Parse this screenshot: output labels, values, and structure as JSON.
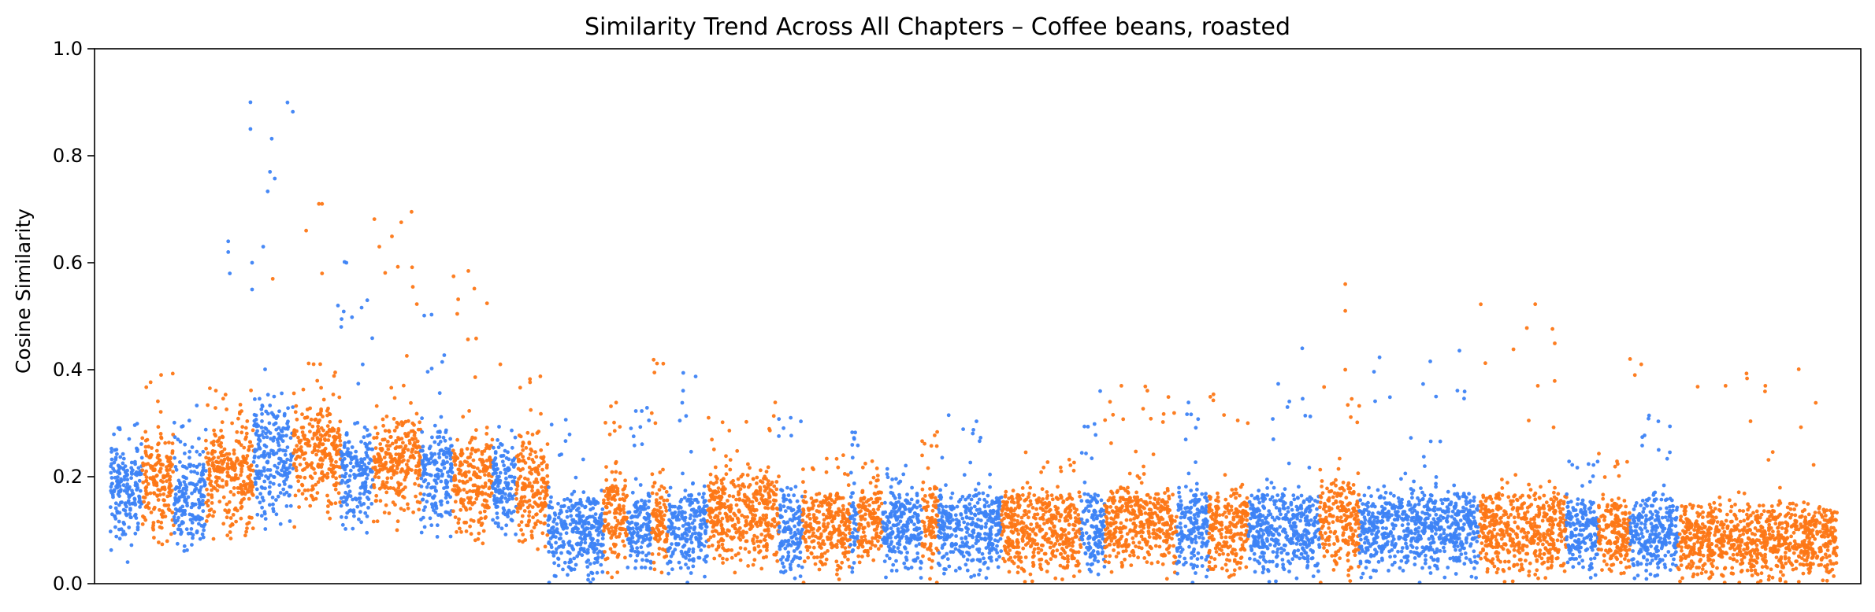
{
  "chart_data": {
    "type": "scatter",
    "title": "Similarity Trend Across All Chapters – Coffee beans, roasted",
    "xlabel": "",
    "ylabel": "Cosine Similarity",
    "ylim": [
      0.0,
      1.0
    ],
    "yticks": [
      "0.0",
      "0.2",
      "0.4",
      "0.6",
      "0.8",
      "1.0"
    ],
    "xticks_visible": false,
    "grid": false,
    "legend": "none",
    "colors": {
      "blue": "#3d83f5",
      "orange": "#fd7716"
    },
    "series_note": "Alternating chapter bands colored blue / orange; thousands of points per band",
    "bands": [
      {
        "x": [
          0.0,
          0.02
        ],
        "color": "blue",
        "median": 0.17,
        "spread": 0.08,
        "max": 0.3
      },
      {
        "x": [
          0.02,
          0.04
        ],
        "color": "orange",
        "median": 0.18,
        "spread": 0.09,
        "max": 0.4
      },
      {
        "x": [
          0.04,
          0.06
        ],
        "color": "blue",
        "median": 0.16,
        "spread": 0.09,
        "max": 0.36
      },
      {
        "x": [
          0.06,
          0.09
        ],
        "color": "orange",
        "median": 0.2,
        "spread": 0.1,
        "max": 0.37
      },
      {
        "x": [
          0.09,
          0.115
        ],
        "color": "blue",
        "median": 0.24,
        "spread": 0.1,
        "max": 0.9
      },
      {
        "x": [
          0.115,
          0.145
        ],
        "color": "orange",
        "median": 0.24,
        "spread": 0.09,
        "max": 0.42
      },
      {
        "x": [
          0.145,
          0.165
        ],
        "color": "blue",
        "median": 0.2,
        "spread": 0.09,
        "max": 0.63
      },
      {
        "x": [
          0.165,
          0.195
        ],
        "color": "orange",
        "median": 0.23,
        "spread": 0.09,
        "max": 0.71
      },
      {
        "x": [
          0.195,
          0.215
        ],
        "color": "blue",
        "median": 0.2,
        "spread": 0.09,
        "max": 0.52
      },
      {
        "x": [
          0.215,
          0.24
        ],
        "color": "orange",
        "median": 0.19,
        "spread": 0.09,
        "max": 0.63
      },
      {
        "x": [
          0.24,
          0.255
        ],
        "color": "blue",
        "median": 0.18,
        "spread": 0.08,
        "max": 0.3
      },
      {
        "x": [
          0.255,
          0.275
        ],
        "color": "orange",
        "median": 0.18,
        "spread": 0.09,
        "max": 0.4
      },
      {
        "x": [
          0.275,
          0.31
        ],
        "color": "blue",
        "median": 0.09,
        "spread": 0.07,
        "max": 0.31
      },
      {
        "x": [
          0.31,
          0.325
        ],
        "color": "orange",
        "median": 0.12,
        "spread": 0.08,
        "max": 0.38
      },
      {
        "x": [
          0.325,
          0.34
        ],
        "color": "blue",
        "median": 0.1,
        "spread": 0.07,
        "max": 0.34
      },
      {
        "x": [
          0.34,
          0.35
        ],
        "color": "orange",
        "median": 0.12,
        "spread": 0.08,
        "max": 0.42
      },
      {
        "x": [
          0.35,
          0.375
        ],
        "color": "blue",
        "median": 0.1,
        "spread": 0.07,
        "max": 0.4
      },
      {
        "x": [
          0.375,
          0.42
        ],
        "color": "orange",
        "median": 0.13,
        "spread": 0.08,
        "max": 0.34
      },
      {
        "x": [
          0.42,
          0.435
        ],
        "color": "blue",
        "median": 0.1,
        "spread": 0.07,
        "max": 0.32
      },
      {
        "x": [
          0.435,
          0.465
        ],
        "color": "orange",
        "median": 0.1,
        "spread": 0.07,
        "max": 0.27
      },
      {
        "x": [
          0.465,
          0.47
        ],
        "color": "blue",
        "median": 0.1,
        "spread": 0.07,
        "max": 0.29
      },
      {
        "x": [
          0.47,
          0.485
        ],
        "color": "orange",
        "median": 0.11,
        "spread": 0.07,
        "max": 0.23
      },
      {
        "x": [
          0.485,
          0.51
        ],
        "color": "blue",
        "median": 0.1,
        "spread": 0.07,
        "max": 0.23
      },
      {
        "x": [
          0.51,
          0.52
        ],
        "color": "orange",
        "median": 0.11,
        "spread": 0.07,
        "max": 0.3
      },
      {
        "x": [
          0.52,
          0.56
        ],
        "color": "blue",
        "median": 0.1,
        "spread": 0.07,
        "max": 0.32
      },
      {
        "x": [
          0.56,
          0.61
        ],
        "color": "orange",
        "median": 0.1,
        "spread": 0.07,
        "max": 0.26
      },
      {
        "x": [
          0.61,
          0.625
        ],
        "color": "blue",
        "median": 0.1,
        "spread": 0.07,
        "max": 0.31
      },
      {
        "x": [
          0.625,
          0.67
        ],
        "color": "orange",
        "median": 0.11,
        "spread": 0.07,
        "max": 0.38
      },
      {
        "x": [
          0.67,
          0.69
        ],
        "color": "blue",
        "median": 0.1,
        "spread": 0.07,
        "max": 0.36
      },
      {
        "x": [
          0.69,
          0.715
        ],
        "color": "orange",
        "median": 0.1,
        "spread": 0.07,
        "max": 0.38
      },
      {
        "x": [
          0.715,
          0.76
        ],
        "color": "blue",
        "median": 0.1,
        "spread": 0.07,
        "max": 0.38
      },
      {
        "x": [
          0.76,
          0.785
        ],
        "color": "orange",
        "median": 0.11,
        "spread": 0.08,
        "max": 0.39
      },
      {
        "x": [
          0.785,
          0.86
        ],
        "color": "blue",
        "median": 0.1,
        "spread": 0.07,
        "max": 0.44
      },
      {
        "x": [
          0.86,
          0.915
        ],
        "color": "orange",
        "median": 0.1,
        "spread": 0.07,
        "max": 0.56
      },
      {
        "x": [
          0.915,
          0.935
        ],
        "color": "blue",
        "median": 0.09,
        "spread": 0.06,
        "max": 0.25
      },
      {
        "x": [
          0.935,
          0.955
        ],
        "color": "orange",
        "median": 0.09,
        "spread": 0.06,
        "max": 0.25
      },
      {
        "x": [
          0.955,
          0.985
        ],
        "color": "blue",
        "median": 0.09,
        "spread": 0.06,
        "max": 0.32
      },
      {
        "x": [
          0.985,
          1.085
        ],
        "color": "orange",
        "median": 0.08,
        "spread": 0.06,
        "max": 0.42
      }
    ],
    "outliers": [
      {
        "x": 0.088,
        "y": 0.9,
        "color": "blue"
      },
      {
        "x": 0.088,
        "y": 0.85,
        "color": "blue"
      },
      {
        "x": 0.074,
        "y": 0.64,
        "color": "blue"
      },
      {
        "x": 0.074,
        "y": 0.62,
        "color": "blue"
      },
      {
        "x": 0.075,
        "y": 0.58,
        "color": "blue"
      },
      {
        "x": 0.089,
        "y": 0.6,
        "color": "blue"
      },
      {
        "x": 0.096,
        "y": 0.63,
        "color": "blue"
      },
      {
        "x": 0.089,
        "y": 0.55,
        "color": "blue"
      },
      {
        "x": 0.102,
        "y": 0.57,
        "color": "orange"
      },
      {
        "x": 0.123,
        "y": 0.66,
        "color": "orange"
      },
      {
        "x": 0.131,
        "y": 0.71,
        "color": "orange"
      },
      {
        "x": 0.133,
        "y": 0.71,
        "color": "orange"
      },
      {
        "x": 0.133,
        "y": 0.58,
        "color": "orange"
      },
      {
        "x": 0.143,
        "y": 0.52,
        "color": "blue"
      },
      {
        "x": 0.145,
        "y": 0.48,
        "color": "blue"
      },
      {
        "x": 0.169,
        "y": 0.63,
        "color": "orange"
      },
      {
        "x": 0.245,
        "y": 0.41,
        "color": "orange"
      },
      {
        "x": 0.622,
        "y": 0.36,
        "color": "blue"
      },
      {
        "x": 0.749,
        "y": 0.44,
        "color": "blue"
      },
      {
        "x": 0.776,
        "y": 0.56,
        "color": "orange"
      },
      {
        "x": 0.776,
        "y": 0.51,
        "color": "orange"
      },
      {
        "x": 0.776,
        "y": 0.4,
        "color": "orange"
      },
      {
        "x": 0.897,
        "y": 0.37,
        "color": "orange"
      },
      {
        "x": 0.955,
        "y": 0.42,
        "color": "orange"
      },
      {
        "x": 0.958,
        "y": 0.39,
        "color": "orange"
      },
      {
        "x": 0.962,
        "y": 0.41,
        "color": "orange"
      },
      {
        "x": 1.015,
        "y": 0.37,
        "color": "orange"
      },
      {
        "x": 1.04,
        "y": 0.37,
        "color": "orange"
      }
    ]
  }
}
